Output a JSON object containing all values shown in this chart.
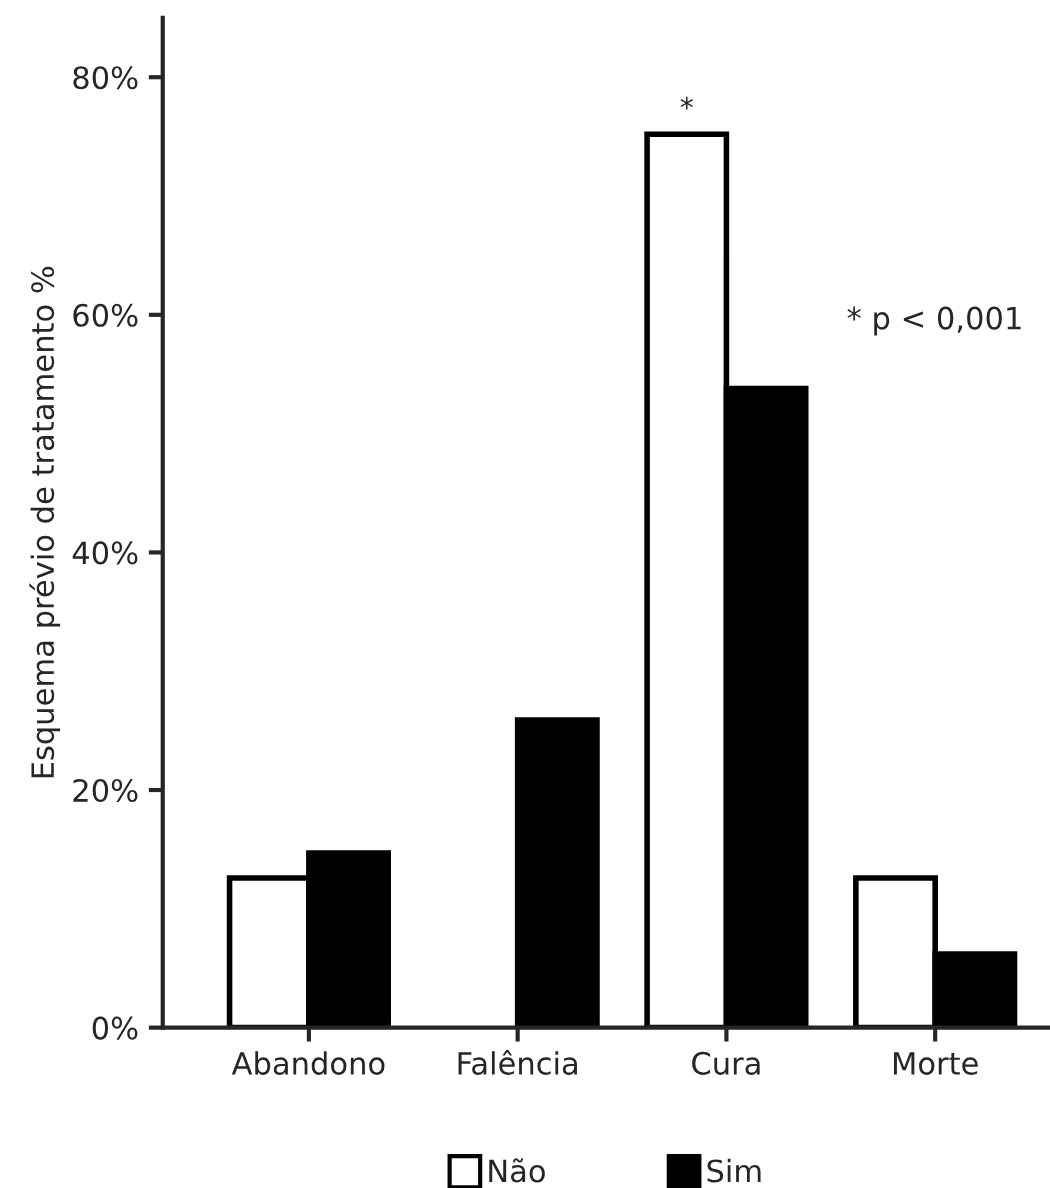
{
  "chart_data": {
    "type": "bar",
    "ylabel": "Esquema prévio de tratamento %",
    "categories": [
      "Abandono",
      "Falência",
      "Cura",
      "Morte"
    ],
    "series": [
      {
        "name": "Não",
        "color": "#ffffff",
        "values": [
          12.6,
          null,
          75.2,
          12.6
        ]
      },
      {
        "name": "Sim",
        "color": "#000000",
        "values": [
          14.7,
          25.9,
          53.8,
          6.2
        ]
      }
    ],
    "ylim": [
      0,
      85
    ],
    "yticks": [
      {
        "value": 0,
        "label": "0%"
      },
      {
        "value": 20,
        "label": "20%"
      },
      {
        "value": 40,
        "label": "40%"
      },
      {
        "value": 60,
        "label": "60%"
      },
      {
        "value": 80,
        "label": "80%"
      }
    ],
    "annotations": [
      {
        "text": "*",
        "x": "Cura",
        "y": 75.2
      },
      "* p < 0,001"
    ],
    "legend": "bottom",
    "grid": false
  }
}
